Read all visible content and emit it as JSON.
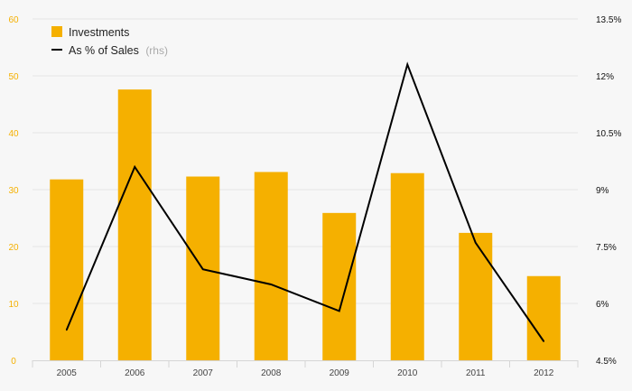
{
  "chart_data": {
    "type": "bar+line",
    "categories": [
      "2005",
      "2006",
      "2007",
      "2008",
      "2009",
      "2010",
      "2011",
      "2012"
    ],
    "series": [
      {
        "name": "Investments",
        "type": "bar",
        "axis": "left",
        "color": "#F5B000",
        "values": [
          31.8,
          47.6,
          32.3,
          33.1,
          25.9,
          32.9,
          22.4,
          14.8
        ]
      },
      {
        "name": "As % of Sales",
        "name_note": "(rhs)",
        "type": "line",
        "axis": "right",
        "color": "#000000",
        "values": [
          5.3,
          9.6,
          6.9,
          6.5,
          5.8,
          12.3,
          7.6,
          5.0
        ]
      }
    ],
    "y_left": {
      "ylim": [
        0,
        60
      ],
      "ticks": [
        "0",
        "10",
        "20",
        "30",
        "40",
        "50",
        "60"
      ],
      "tick_color": "#F5B000"
    },
    "y_right": {
      "ylim": [
        4.5,
        13.5
      ],
      "ticks": [
        "4.5%",
        "6%",
        "7.5%",
        "9%",
        "10.5%",
        "12%",
        "13.5%"
      ]
    },
    "grid": true,
    "legend": "top-left",
    "title": "",
    "xlabel": "",
    "ylabel": ""
  }
}
